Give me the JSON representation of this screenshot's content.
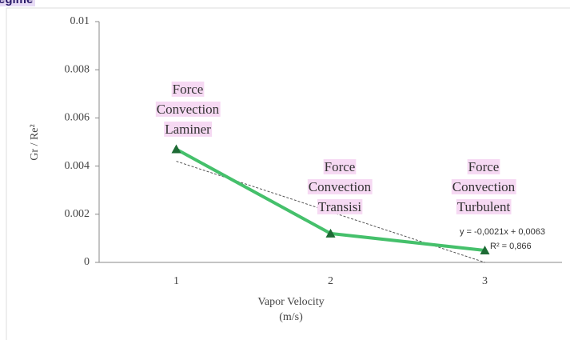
{
  "header": {
    "title": "egime"
  },
  "chart_data": {
    "type": "line",
    "x_label": [
      "Vapor Velocity",
      "(m/s)"
    ],
    "y_label": "Gr / Re²",
    "categories": [
      "1",
      "2",
      "3"
    ],
    "series": [
      {
        "name": "Gr / Re²",
        "color": "#45c06b",
        "marker_color": "#1e6b35",
        "values": [
          0.0047,
          0.0012,
          0.0005
        ]
      }
    ],
    "ylim": [
      0,
      0.01
    ],
    "yticks": [
      0,
      0.002,
      0.004,
      0.006,
      0.008,
      0.01
    ],
    "trendline": {
      "slope": -0.0021,
      "intercept": 0.0063,
      "equation": "y = -0,0021x + 0,0063",
      "r2": "R² = 0,866",
      "color": "#555555"
    },
    "annotations": [
      {
        "lines": [
          "Force",
          "Convection",
          "Laminer"
        ]
      },
      {
        "lines": [
          "Force",
          "Convection",
          "Transisi"
        ]
      },
      {
        "lines": [
          "Force",
          "Convection",
          "Turbulent"
        ]
      }
    ]
  }
}
